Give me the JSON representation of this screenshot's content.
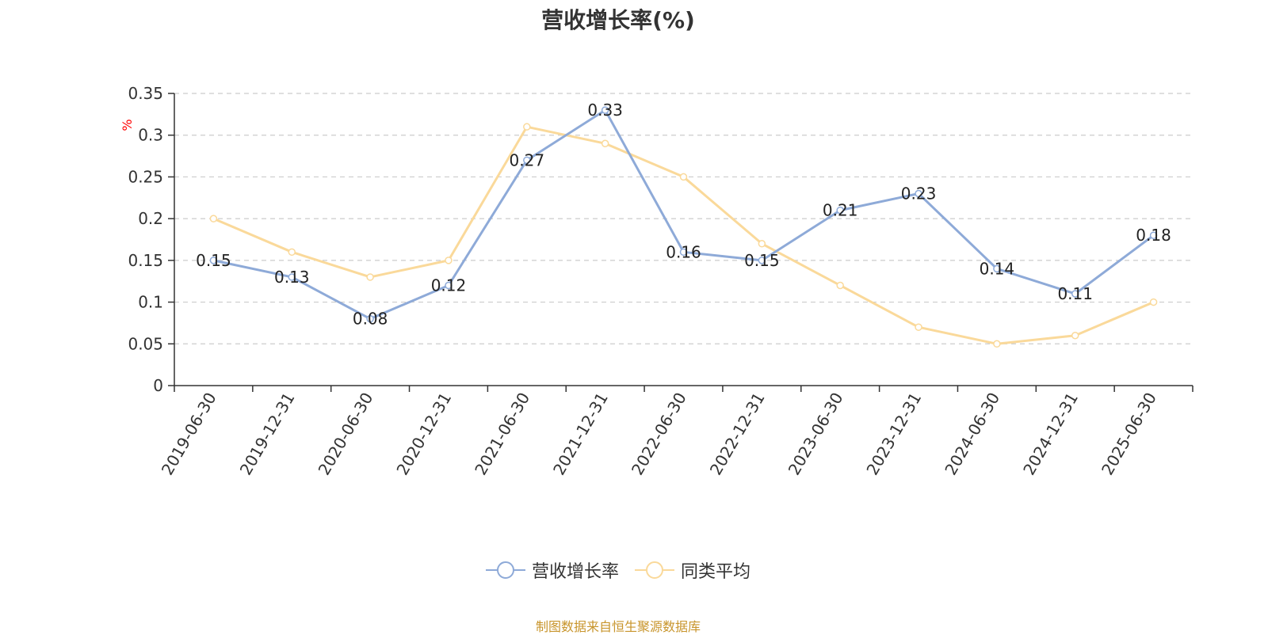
{
  "chart_data": {
    "type": "line",
    "title": "营收增长率(%)",
    "ylabel": "%",
    "ylim": [
      0,
      0.35
    ],
    "yticks": [
      "0",
      "0.05",
      "0.1",
      "0.15",
      "0.2",
      "0.25",
      "0.3",
      "0.35"
    ],
    "ytick_values": [
      0,
      0.05,
      0.1,
      0.15,
      0.2,
      0.25,
      0.3,
      0.35
    ],
    "categories": [
      "2019-06-30",
      "2019-12-31",
      "2020-06-30",
      "2020-12-31",
      "2021-06-30",
      "2021-12-31",
      "2022-06-30",
      "2022-12-31",
      "2023-06-30",
      "2023-12-31",
      "2024-06-30",
      "2024-12-31",
      "2025-06-30"
    ],
    "grid": true,
    "legend_position": "bottom",
    "series": [
      {
        "name": "营收增长率",
        "color": "#8eaad8",
        "values": [
          0.15,
          0.13,
          0.08,
          0.12,
          0.27,
          0.33,
          0.16,
          0.15,
          0.21,
          0.23,
          0.14,
          0.11,
          0.18
        ],
        "labels": [
          "0.15",
          "0.13",
          "0.08",
          "0.12",
          "0.27",
          "0.33",
          "0.16",
          "0.15",
          "0.21",
          "0.23",
          "0.14",
          "0.11",
          "0.18"
        ]
      },
      {
        "name": "同类平均",
        "color": "#fad99a",
        "values": [
          0.2,
          0.16,
          0.13,
          0.15,
          0.31,
          0.29,
          0.25,
          0.17,
          0.12,
          0.07,
          0.05,
          0.06,
          0.1
        ]
      }
    ]
  },
  "source": "制图数据来自恒生聚源数据库"
}
